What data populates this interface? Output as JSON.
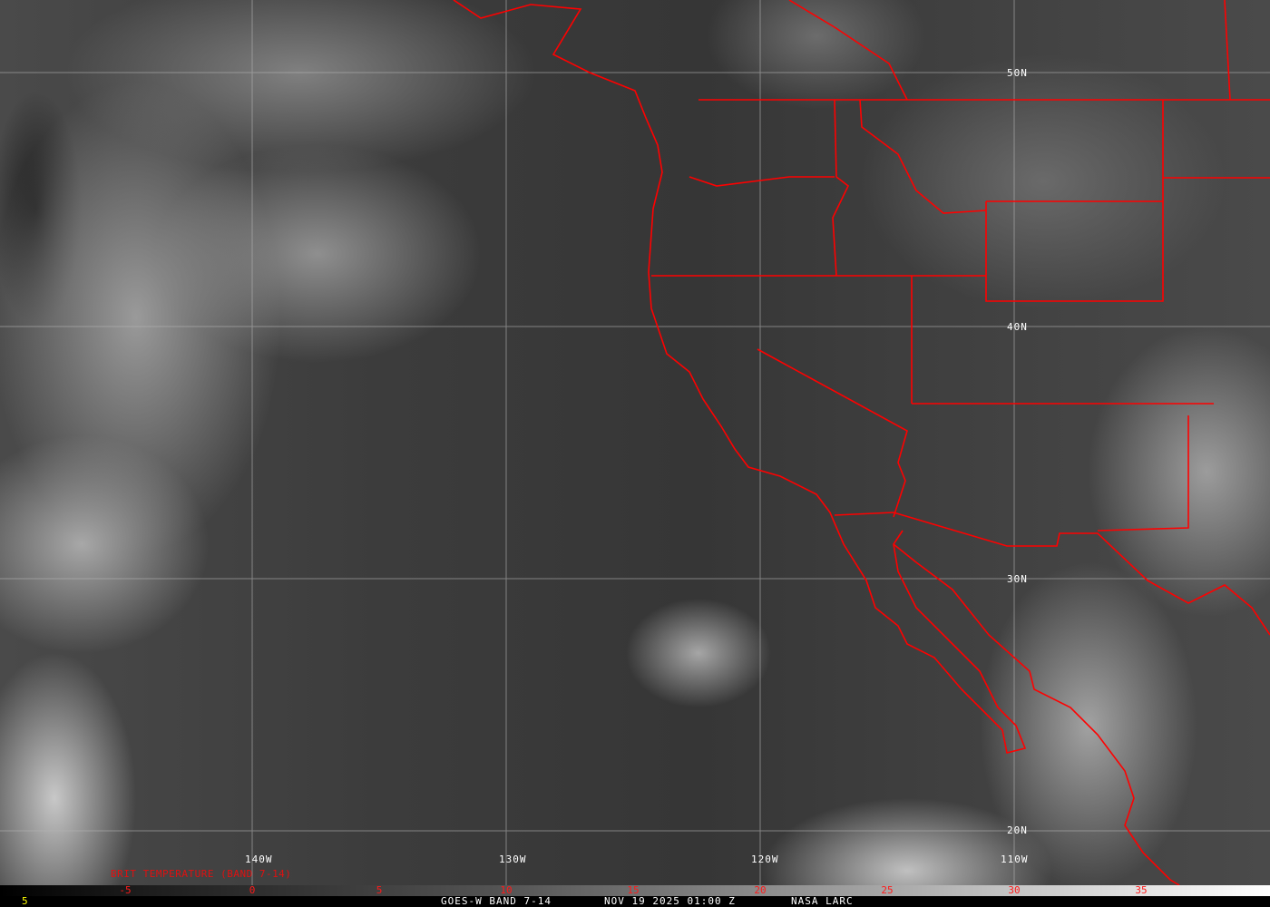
{
  "map": {
    "latitude_labels": [
      "50N",
      "40N",
      "30N",
      "20N"
    ],
    "longitude_labels": [
      "140W",
      "130W",
      "120W",
      "110W"
    ],
    "boundary_color": "#ff0000",
    "grid_color": "#b4b4b4"
  },
  "colorbar": {
    "title": "BRIT TEMPERATURE (BAND 7-14)",
    "ticks": [
      "-5",
      "0",
      "5",
      "10",
      "15",
      "20",
      "25",
      "30",
      "35"
    ],
    "tick_color": "#ff1a1a"
  },
  "footer": {
    "left_marker": "5",
    "product": "GOES-W BAND 7-14",
    "datetime": "NOV 19 2025 01:00 Z",
    "source": "NASA LARC"
  }
}
